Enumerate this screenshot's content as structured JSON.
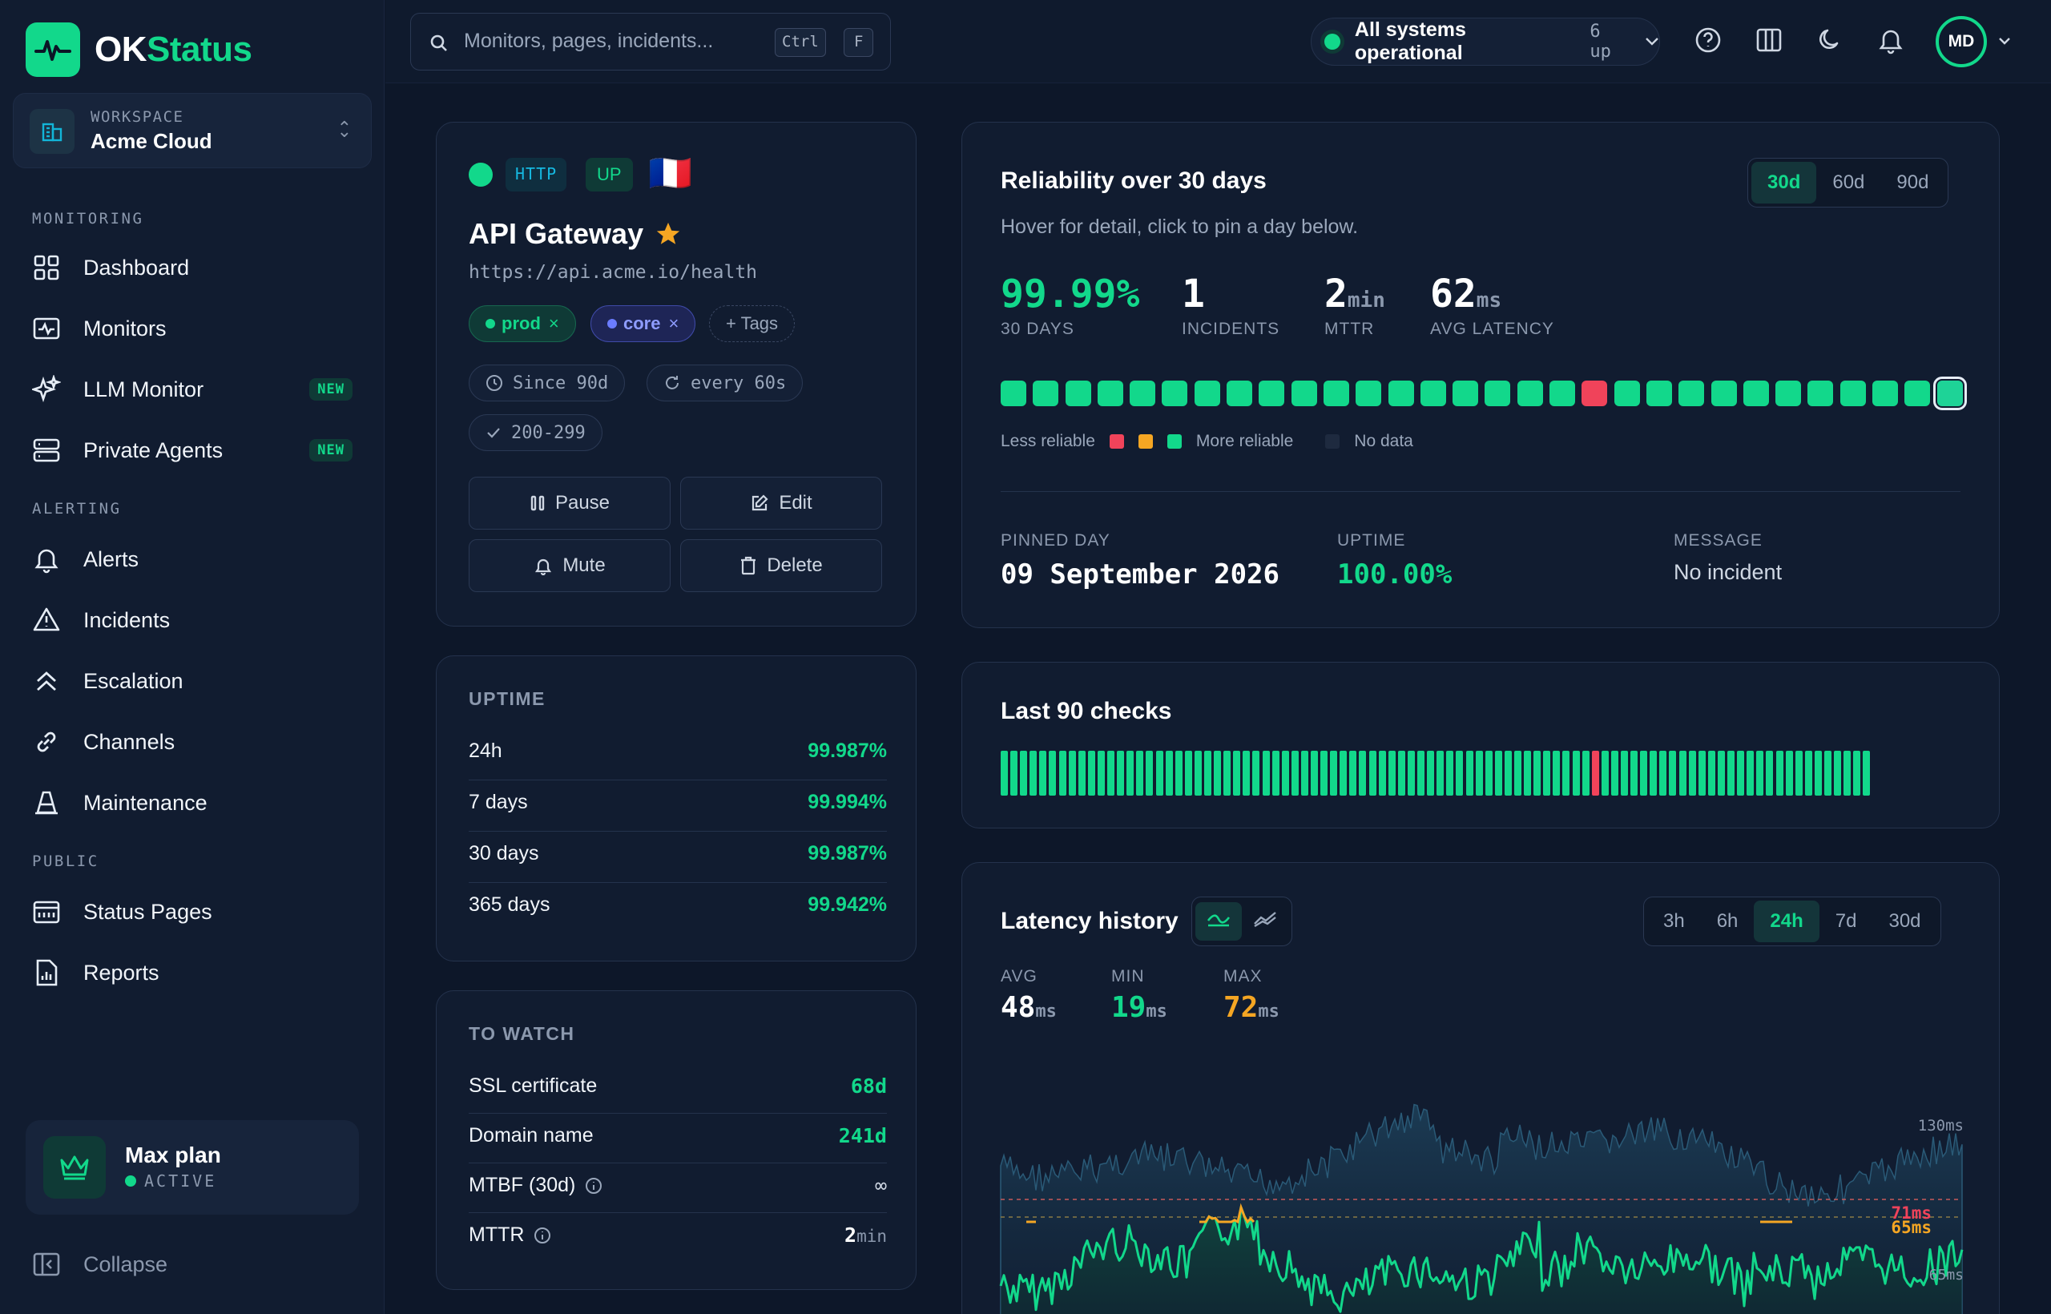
{
  "app": {
    "name_a": "OK",
    "name_b": "Status"
  },
  "workspace": {
    "label": "WORKSPACE",
    "name": "Acme Cloud"
  },
  "sidebar": {
    "sections": [
      {
        "label": "MONITORING"
      },
      {
        "label": "ALERTING"
      },
      {
        "label": "PUBLIC"
      }
    ],
    "items": [
      {
        "label": "Dashboard"
      },
      {
        "label": "Monitors"
      },
      {
        "label": "LLM Monitor",
        "badge": "NEW"
      },
      {
        "label": "Private Agents",
        "badge": "NEW"
      },
      {
        "label": "Alerts"
      },
      {
        "label": "Incidents"
      },
      {
        "label": "Escalation"
      },
      {
        "label": "Channels"
      },
      {
        "label": "Maintenance"
      },
      {
        "label": "Status Pages"
      },
      {
        "label": "Reports"
      }
    ],
    "plan": {
      "name": "Max plan",
      "status": "ACTIVE"
    },
    "collapse": "Collapse"
  },
  "topbar": {
    "search_placeholder": "Monitors, pages, incidents...",
    "kbd1": "Ctrl",
    "kbd2": "F",
    "status_text": "All systems operational",
    "status_count": "6 up",
    "avatar": "MD"
  },
  "monitor": {
    "type": "HTTP",
    "state": "UP",
    "flag": "🇫🇷",
    "name": "API Gateway",
    "url": "https://api.acme.io/health",
    "tags": [
      "prod",
      "core"
    ],
    "add_tag": "+ Tags",
    "meta": [
      "Since 90d",
      "every 60s",
      "200-299"
    ],
    "actions": {
      "pause": "Pause",
      "edit": "Edit",
      "mute": "Mute",
      "delete": "Delete"
    }
  },
  "uptime": {
    "title": "UPTIME",
    "rows": [
      {
        "label": "24h",
        "value": "99.987%"
      },
      {
        "label": "7 days",
        "value": "99.994%"
      },
      {
        "label": "30 days",
        "value": "99.987%"
      },
      {
        "label": "365 days",
        "value": "99.942%"
      }
    ]
  },
  "watch": {
    "title": "TO WATCH",
    "rows": [
      {
        "label": "SSL certificate",
        "value": "68d"
      },
      {
        "label": "Domain name",
        "value": "241d"
      },
      {
        "label": "MTBF (30d)",
        "value": "∞"
      },
      {
        "label": "MTTR",
        "value": "2",
        "unit": "min"
      }
    ]
  },
  "reliability": {
    "title": "Reliability over 30 days",
    "subtitle": "Hover for detail, click to pin a day below.",
    "ranges": [
      "30d",
      "60d",
      "90d"
    ],
    "active_range": "30d",
    "stats": [
      {
        "value": "99.99%",
        "label": "30 DAYS"
      },
      {
        "value": "1",
        "label": "INCIDENTS"
      },
      {
        "value": "2",
        "unit": "min",
        "label": "MTTR"
      },
      {
        "value": "62",
        "unit": "ms",
        "label": "AVG LATENCY"
      }
    ],
    "days": [
      "ok",
      "ok",
      "ok",
      "ok",
      "ok",
      "ok",
      "ok",
      "ok",
      "ok",
      "ok",
      "ok",
      "ok",
      "ok",
      "ok",
      "ok",
      "ok",
      "ok",
      "ok",
      "red",
      "ok",
      "ok",
      "ok",
      "ok",
      "ok",
      "ok",
      "ok",
      "ok",
      "ok",
      "ok",
      "sel"
    ],
    "legend": {
      "less": "Less reliable",
      "more": "More reliable",
      "nodata": "No data"
    },
    "pinned": {
      "day_label": "PINNED DAY",
      "day": "09 September 2026",
      "uptime_label": "UPTIME",
      "uptime": "100.00%",
      "message_label": "MESSAGE",
      "message": "No incident"
    },
    "colors": {
      "ok": "#12d88b",
      "bad": "#f0435a",
      "warn": "#f5a623"
    }
  },
  "checks": {
    "title": "Last 90 checks",
    "red_index": 61,
    "count": 90
  },
  "latency": {
    "title": "Latency history",
    "ranges": [
      "3h",
      "6h",
      "24h",
      "7d",
      "30d"
    ],
    "active_range": "24h",
    "avg_label": "AVG",
    "avg": "48",
    "min_label": "MIN",
    "min": "19",
    "max_label": "MAX",
    "max": "72",
    "unit": "ms",
    "axis_top": "130ms",
    "ref": "65ms",
    "mark1": "71ms",
    "mark2": "65ms"
  }
}
